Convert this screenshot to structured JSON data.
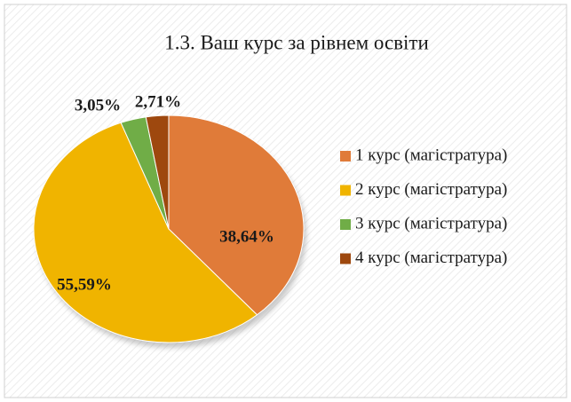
{
  "chart_data": {
    "type": "pie",
    "title": "1.3.  Ваш курс за рівнем освіти",
    "categories": [
      "1 курс (магістратура)",
      "2 курс (магістратура)",
      "3 курс (магістратура)",
      "4 курс (магістратура)"
    ],
    "values": [
      38.64,
      55.59,
      3.05,
      2.71
    ],
    "value_labels": [
      "38,64%",
      "55,59%",
      "3,05%",
      "2,71%"
    ],
    "colors": [
      "#e07b39",
      "#f0b400",
      "#70ad47",
      "#9e480e"
    ],
    "legend": "right"
  }
}
